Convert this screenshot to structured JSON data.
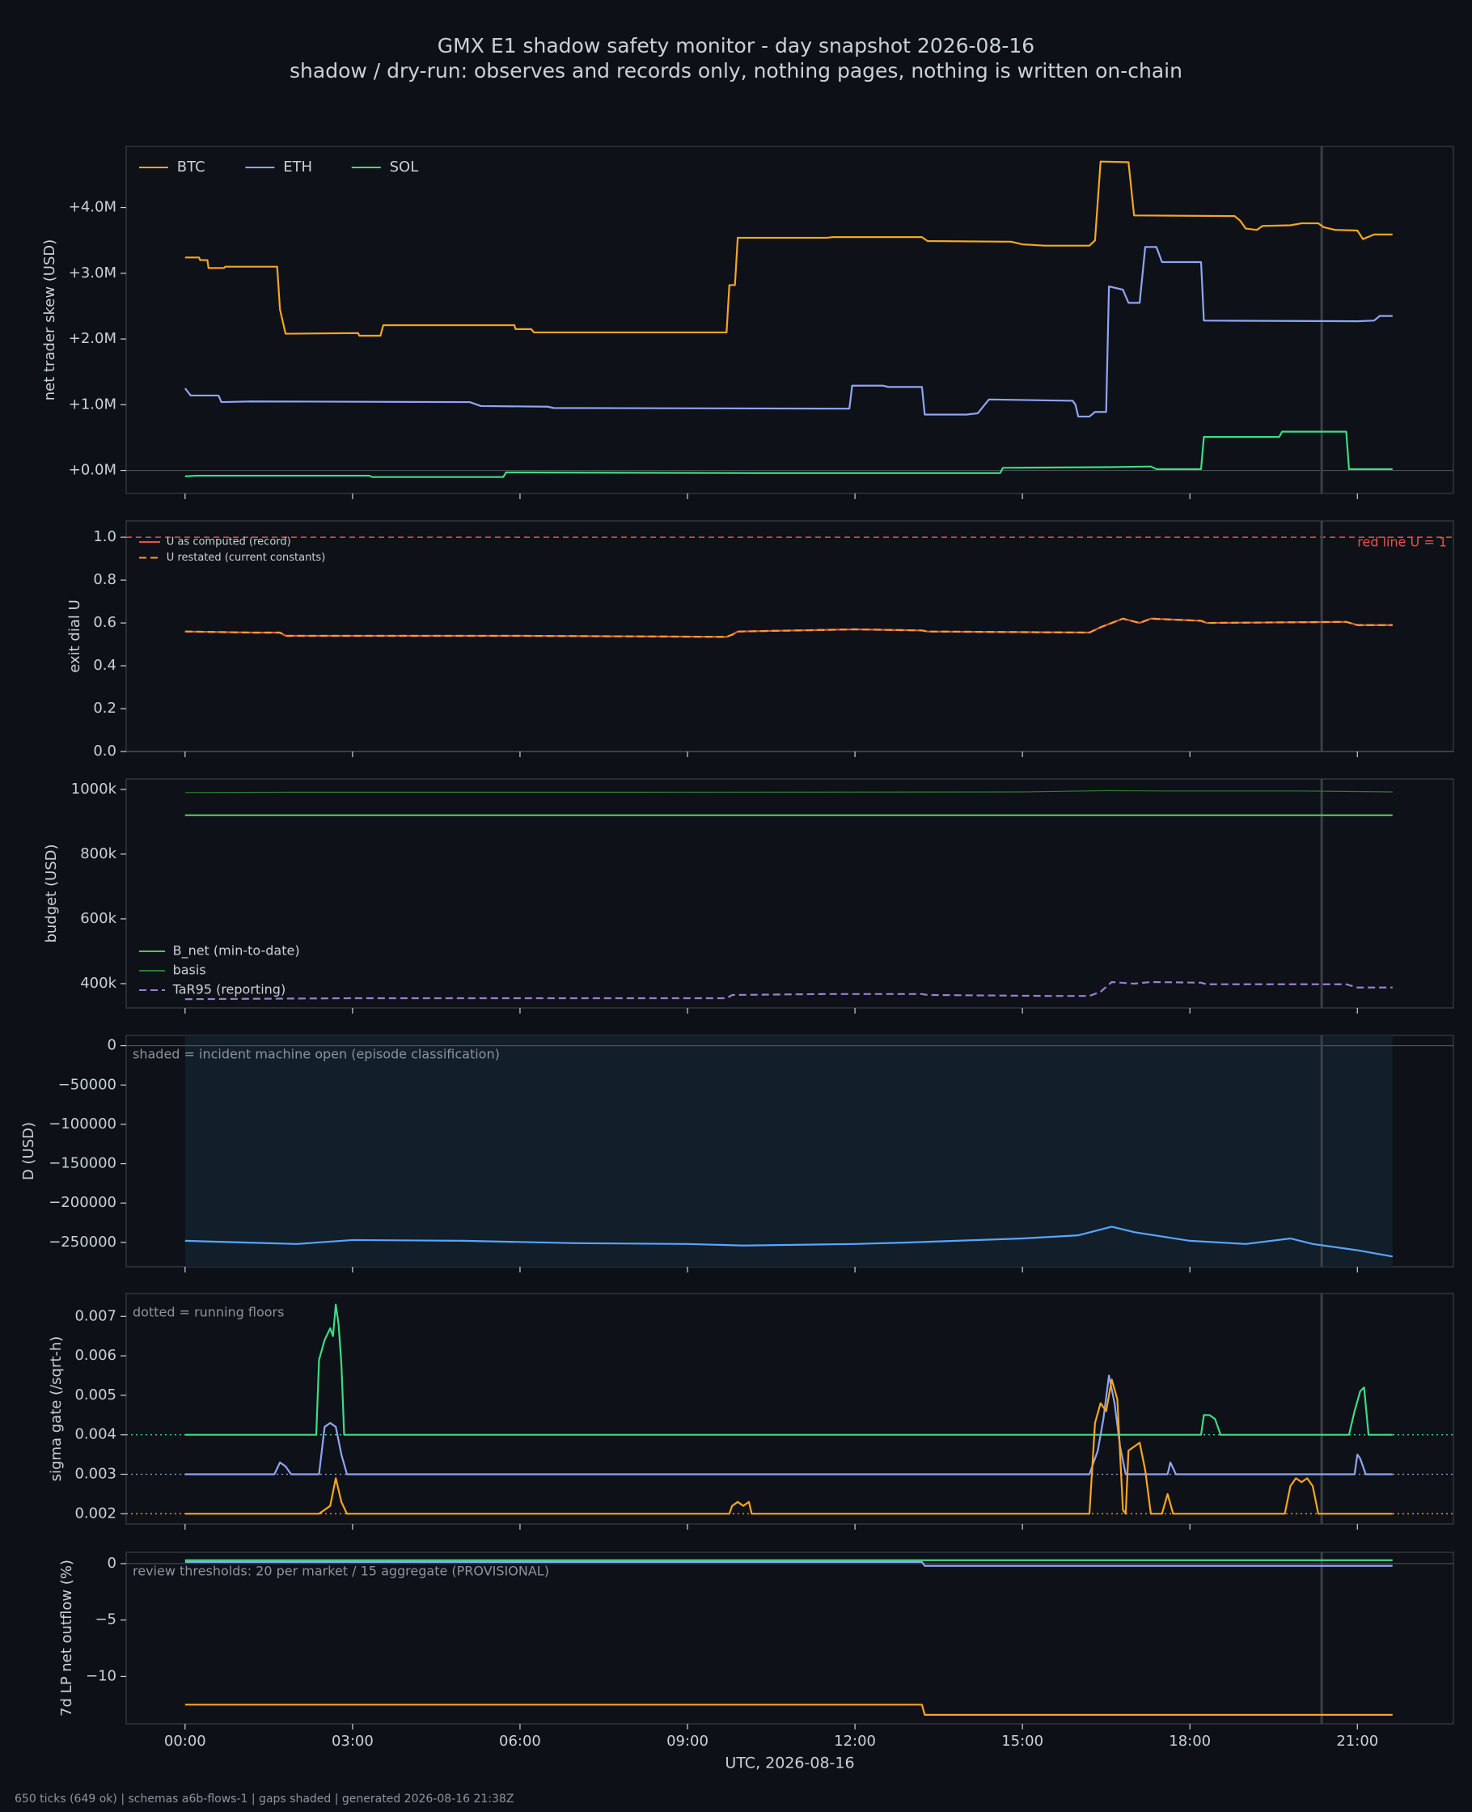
{
  "header": {
    "title": "GMX E1 shadow safety monitor - day snapshot 2026-08-16",
    "subtitle": "shadow / dry-run: observes and records only, nothing pages, nothing is written on-chain"
  },
  "footer": "650 ticks (649 ok) | schemas a6b-flows-1 | gaps shaded | generated 2026-08-16 21:38Z",
  "x_axis": {
    "label": "UTC, 2026-08-16",
    "xlim": [
      -1.055,
      22.72
    ],
    "xticks": [
      {
        "value": 0,
        "label": "00:00"
      },
      {
        "value": 3,
        "label": "03:00"
      },
      {
        "value": 6,
        "label": "06:00"
      },
      {
        "value": 9,
        "label": "09:00"
      },
      {
        "value": 12,
        "label": "12:00"
      },
      {
        "value": 15,
        "label": "15:00"
      },
      {
        "value": 18,
        "label": "18:00"
      },
      {
        "value": 21,
        "label": "21:00"
      }
    ]
  },
  "chart_data": [
    {
      "type": "line",
      "y_label": "net trader skew (USD)",
      "ylim": [
        -350000,
        4930000
      ],
      "yticks": [
        {
          "value": 0,
          "label": "+0.0M"
        },
        {
          "value": 1000000,
          "label": "+1.0M"
        },
        {
          "value": 2000000,
          "label": "+2.0M"
        },
        {
          "value": 3000000,
          "label": "+3.0M"
        },
        {
          "value": 4000000,
          "label": "+4.0M"
        }
      ],
      "legend": {
        "loc": "upper left",
        "ncol": 3
      },
      "vline": 20.36,
      "series": [
        {
          "name": "BTC",
          "color": "#f5a623",
          "x": [
            0,
            0.25,
            0.27,
            0.4,
            0.42,
            0.7,
            0.72,
            1.65,
            1.7,
            1.8,
            3.1,
            3.12,
            3.5,
            3.55,
            5.9,
            5.92,
            6.2,
            6.25,
            9.7,
            9.75,
            9.85,
            9.9,
            11.5,
            11.6,
            13.2,
            13.3,
            14.8,
            15.0,
            15.4,
            16.2,
            16.3,
            16.4,
            16.9,
            17.0,
            18.8,
            18.9,
            19.0,
            19.2,
            19.3,
            19.8,
            20.0,
            20.3,
            20.4,
            20.6,
            21.0,
            21.1,
            21.3,
            21.63
          ],
          "values": [
            3240000,
            3240000,
            3200000,
            3200000,
            3080000,
            3080000,
            3100000,
            3100000,
            2450000,
            2080000,
            2090000,
            2050000,
            2050000,
            2210000,
            2210000,
            2150000,
            2150000,
            2100000,
            2100000,
            2820000,
            2820000,
            3540000,
            3540000,
            3550000,
            3550000,
            3490000,
            3480000,
            3440000,
            3420000,
            3420000,
            3500000,
            4700000,
            4690000,
            3880000,
            3870000,
            3800000,
            3680000,
            3660000,
            3720000,
            3730000,
            3760000,
            3760000,
            3700000,
            3660000,
            3650000,
            3520000,
            3590000,
            3590000
          ]
        },
        {
          "name": "ETH",
          "color": "#8fa5f5",
          "x": [
            0,
            0.1,
            0.6,
            0.65,
            1.2,
            5.1,
            5.3,
            6.5,
            6.6,
            11.9,
            11.95,
            12.5,
            12.6,
            13.2,
            13.25,
            14.0,
            14.2,
            14.4,
            15.9,
            15.95,
            16.0,
            16.2,
            16.3,
            16.5,
            16.55,
            16.8,
            16.9,
            17.1,
            17.2,
            17.4,
            17.5,
            18.2,
            18.25,
            21.0,
            21.3,
            21.4,
            21.63
          ],
          "values": [
            1250000,
            1140000,
            1140000,
            1040000,
            1050000,
            1040000,
            980000,
            970000,
            950000,
            940000,
            1290000,
            1290000,
            1270000,
            1270000,
            850000,
            850000,
            870000,
            1080000,
            1060000,
            1000000,
            820000,
            820000,
            890000,
            890000,
            2800000,
            2750000,
            2550000,
            2550000,
            3400000,
            3400000,
            3170000,
            3170000,
            2280000,
            2270000,
            2280000,
            2350000,
            2350000
          ]
        },
        {
          "name": "SOL",
          "color": "#3ddc84",
          "x": [
            0,
            0.2,
            3.3,
            3.35,
            5.7,
            5.75,
            10.2,
            14.6,
            14.65,
            16.5,
            17.3,
            17.4,
            18.2,
            18.25,
            19.6,
            19.65,
            20.8,
            20.85,
            21.63
          ],
          "values": [
            -90000,
            -80000,
            -80000,
            -100000,
            -100000,
            -30000,
            -40000,
            -40000,
            40000,
            50000,
            60000,
            20000,
            20000,
            510000,
            510000,
            590000,
            590000,
            20000,
            20000
          ]
        }
      ]
    },
    {
      "type": "line",
      "y_label": "exit dial U",
      "ylim": [
        0,
        1.076
      ],
      "yticks": [
        {
          "value": 0,
          "label": "0.0"
        },
        0.2,
        0.4,
        0.6,
        0.8,
        {
          "value": 1,
          "label": "1.0"
        }
      ],
      "legend": {
        "loc": "upper left",
        "ncol": 1
      },
      "vline": 20.36,
      "ref_line": {
        "value": 1,
        "label": "red line U = 1",
        "color": "#e5534b"
      },
      "series": [
        {
          "name": "U as computed (record)",
          "color": "#e5534b",
          "x": [
            0,
            1.2,
            1.7,
            1.8,
            6,
            9.7,
            9.8,
            9.9,
            12,
            13.2,
            13.3,
            16.2,
            16.4,
            16.8,
            17.1,
            17.3,
            18.2,
            18.3,
            20.8,
            21,
            21.63
          ],
          "values": [
            0.56,
            0.555,
            0.555,
            0.54,
            0.54,
            0.535,
            0.545,
            0.56,
            0.57,
            0.565,
            0.56,
            0.555,
            0.58,
            0.62,
            0.6,
            0.62,
            0.61,
            0.6,
            0.605,
            0.59,
            0.59
          ]
        },
        {
          "name": "U restated (current constants)",
          "color": "#f0a030",
          "dash": "dashed",
          "x": [
            0,
            1.2,
            1.7,
            1.8,
            6,
            9.7,
            9.8,
            9.9,
            12,
            13.2,
            13.3,
            16.2,
            16.4,
            16.8,
            17.1,
            17.3,
            18.2,
            18.3,
            20.8,
            21,
            21.63
          ],
          "values": [
            0.56,
            0.555,
            0.555,
            0.54,
            0.54,
            0.535,
            0.545,
            0.56,
            0.57,
            0.565,
            0.56,
            0.555,
            0.58,
            0.62,
            0.6,
            0.62,
            0.61,
            0.6,
            0.605,
            0.59,
            0.59
          ]
        }
      ]
    },
    {
      "type": "line",
      "y_label": "budget (USD)",
      "ylim": [
        325000,
        1032000
      ],
      "yticks": [
        {
          "value": 400000,
          "label": "400k"
        },
        {
          "value": 600000,
          "label": "600k"
        },
        {
          "value": 800000,
          "label": "800k"
        },
        {
          "value": 1000000,
          "label": "1000k"
        }
      ],
      "legend": {
        "loc": "lower left",
        "ncol": 1
      },
      "vline": 20.36,
      "series": [
        {
          "name": "B_net (min-to-date)",
          "color": "#4ec94e",
          "x": [
            0,
            21.63
          ],
          "values": [
            920000,
            920000
          ]
        },
        {
          "name": "basis",
          "color": "#2e7d32",
          "thin": true,
          "x": [
            0,
            2,
            8,
            15,
            16.5,
            17.5,
            20,
            21.63
          ],
          "values": [
            990000,
            991000,
            991000,
            992000,
            996000,
            995000,
            995000,
            992000
          ]
        },
        {
          "name": "TaR95 (reporting)",
          "color": "#9b7fd4",
          "dash": "dashed",
          "x": [
            0,
            3,
            9.7,
            9.8,
            11.5,
            13.2,
            13.3,
            15.5,
            16.2,
            16.4,
            16.6,
            17,
            17.3,
            18.2,
            18.3,
            20.8,
            21,
            21.63
          ],
          "values": [
            352000,
            355000,
            355000,
            365000,
            368000,
            368000,
            365000,
            362000,
            362000,
            375000,
            405000,
            400000,
            405000,
            403000,
            398000,
            398000,
            388000,
            388000
          ]
        }
      ]
    },
    {
      "type": "line",
      "y_label": "D (USD)",
      "ylim": [
        -281000,
        13000
      ],
      "yticks": [
        {
          "value": -250000,
          "label": "−250000"
        },
        {
          "value": -200000,
          "label": "−200000"
        },
        {
          "value": -150000,
          "label": "−150000"
        },
        {
          "value": -100000,
          "label": "−100000"
        },
        {
          "value": -50000,
          "label": "−50000"
        },
        0
      ],
      "annotation": "shaded = incident machine open (episode classification)",
      "shaded_spans": [
        [
          0,
          21.63
        ]
      ],
      "vline": 20.36,
      "series": [
        {
          "color": "#58a6ff",
          "x": [
            0,
            1,
            2,
            3,
            5,
            7,
            9,
            10,
            12,
            13,
            15,
            16,
            16.6,
            17,
            18,
            19,
            19.8,
            20.2,
            21,
            21.63
          ],
          "values": [
            -248000,
            -250000,
            -252000,
            -247000,
            -248000,
            -251000,
            -252000,
            -254000,
            -252000,
            -250000,
            -245000,
            -241000,
            -230000,
            -237000,
            -248000,
            -252000,
            -245000,
            -252000,
            -260000,
            -268000
          ]
        }
      ]
    },
    {
      "type": "line",
      "y_label": "sigma gate (/sqrt-h)",
      "ylim": [
        0.00174,
        0.00758
      ],
      "yticks": [
        0.002,
        0.003,
        0.004,
        0.005,
        0.006,
        0.007
      ],
      "annotation": "dotted = running floors",
      "vline": 20.36,
      "floors": [
        {
          "value": 0.004,
          "color": "#3ddc84"
        },
        {
          "value": 0.003,
          "color": "#8fa5f5"
        },
        {
          "value": 0.002,
          "color": "#f5a623"
        }
      ],
      "series": [
        {
          "color": "#3ddc84",
          "x": [
            0,
            2.35,
            2.4,
            2.5,
            2.6,
            2.65,
            2.7,
            2.75,
            2.8,
            2.85,
            2.9,
            18.2,
            18.25,
            18.35,
            18.45,
            18.55,
            18.6,
            20.85,
            20.95,
            21.05,
            21.12,
            21.2,
            21.63
          ],
          "values": [
            0.004,
            0.004,
            0.0059,
            0.0064,
            0.0067,
            0.0065,
            0.0073,
            0.0068,
            0.0058,
            0.004,
            0.004,
            0.004,
            0.0045,
            0.0045,
            0.0044,
            0.004,
            0.004,
            0.004,
            0.0046,
            0.0051,
            0.0052,
            0.004,
            0.004
          ]
        },
        {
          "color": "#8fa5f5",
          "x": [
            0,
            1.6,
            1.7,
            1.8,
            1.9,
            2.0,
            2.4,
            2.5,
            2.6,
            2.7,
            2.8,
            2.9,
            16.2,
            16.35,
            16.45,
            16.55,
            16.65,
            16.75,
            16.85,
            16.95,
            17.6,
            17.65,
            17.75,
            20.95,
            21.0,
            21.05,
            21.15,
            21.63
          ],
          "values": [
            0.003,
            0.003,
            0.0033,
            0.0032,
            0.003,
            0.003,
            0.003,
            0.0042,
            0.0043,
            0.0042,
            0.0035,
            0.003,
            0.003,
            0.0036,
            0.0044,
            0.0055,
            0.0048,
            0.0037,
            0.003,
            0.003,
            0.003,
            0.0033,
            0.003,
            0.003,
            0.0035,
            0.0034,
            0.003,
            0.003
          ]
        },
        {
          "color": "#f5a623",
          "x": [
            0,
            2.4,
            2.5,
            2.6,
            2.7,
            2.8,
            2.9,
            9.75,
            9.8,
            9.9,
            10.0,
            10.1,
            10.15,
            16.2,
            16.3,
            16.4,
            16.5,
            16.6,
            16.7,
            16.8,
            16.85,
            16.9,
            17.0,
            17.1,
            17.2,
            17.3,
            17.5,
            17.6,
            17.7,
            19.7,
            19.8,
            19.9,
            20.0,
            20.1,
            20.2,
            20.3,
            21.63
          ],
          "values": [
            0.002,
            0.002,
            0.0021,
            0.0022,
            0.0029,
            0.0023,
            0.002,
            0.002,
            0.0022,
            0.0023,
            0.0022,
            0.0023,
            0.002,
            0.002,
            0.0043,
            0.0048,
            0.0046,
            0.0054,
            0.0049,
            0.0021,
            0.002,
            0.0036,
            0.0037,
            0.0038,
            0.0031,
            0.002,
            0.002,
            0.0025,
            0.002,
            0.002,
            0.0027,
            0.0029,
            0.0028,
            0.0029,
            0.0027,
            0.002,
            0.002
          ]
        }
      ]
    },
    {
      "type": "line",
      "y_label": "7d LP net outflow (%)",
      "ylim": [
        -14.2,
        1.0
      ],
      "yticks": [
        {
          "value": -10,
          "label": "−10"
        },
        {
          "value": -5,
          "label": "−5"
        },
        0
      ],
      "annotation": "review thresholds: 20 per market / 15 aggregate (PROVISIONAL)",
      "vline": 20.36,
      "series": [
        {
          "color": "#3ddc84",
          "x": [
            0,
            21.63
          ],
          "values": [
            0.3,
            0.3
          ]
        },
        {
          "color": "#8fa5f5",
          "x": [
            0,
            13.2,
            13.25,
            21.63
          ],
          "values": [
            0.15,
            0.15,
            -0.2,
            -0.2
          ]
        },
        {
          "color": "#f5a623",
          "x": [
            0,
            13.2,
            13.25,
            21.63
          ],
          "values": [
            -12.5,
            -12.5,
            -13.4,
            -13.4
          ]
        }
      ]
    }
  ]
}
